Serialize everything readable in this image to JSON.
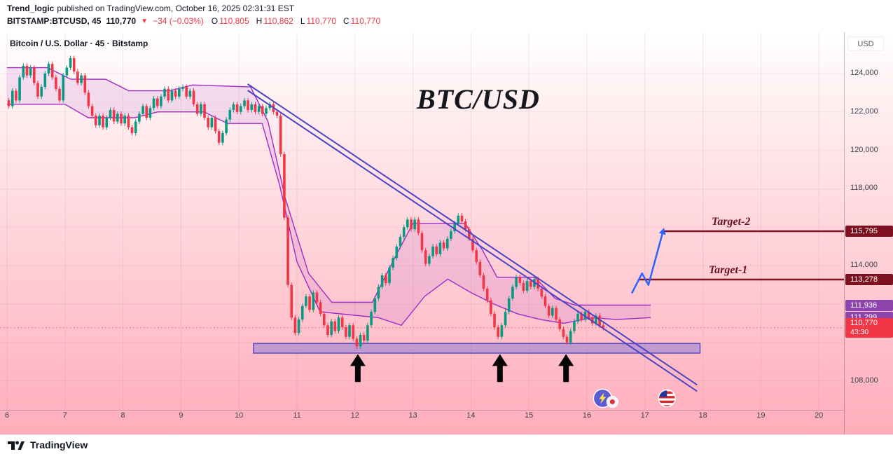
{
  "header": {
    "byline_author": "Trend_logic",
    "byline_rest": "published on TradingView.com, October 16, 2025 02:31:31 EST",
    "symbol": "BITSTAMP:BTCUSD, 45",
    "last_price": "110,770",
    "direction_icon": "▼",
    "change": "−34 (−0.03%)",
    "ohlc": {
      "o_label": "O",
      "o": "110,805",
      "h_label": "H",
      "h": "110,862",
      "l_label": "L",
      "l": "110,770",
      "c_label": "C",
      "c": "110,770"
    }
  },
  "chart": {
    "legend": "Bitcoin / U.S. Dollar · 45 · Bitstamp",
    "watermark": "BTC/USD",
    "currency_button": "USD",
    "y_axis_ticks": [
      {
        "label": "124,000",
        "price": 124000
      },
      {
        "label": "122,000",
        "price": 122000
      },
      {
        "label": "120,000",
        "price": 120000
      },
      {
        "label": "118,000",
        "price": 118000
      },
      {
        "label": "114,000",
        "price": 114000
      },
      {
        "label": "108,000",
        "price": 108000
      }
    ],
    "x_axis_ticks": [
      "6",
      "7",
      "8",
      "9",
      "10",
      "11",
      "12",
      "13",
      "14",
      "15",
      "16",
      "17",
      "18",
      "19",
      "20"
    ],
    "price_badges": [
      {
        "text": "115,795",
        "price": 115795,
        "color": "#7e1120"
      },
      {
        "text": "113,278",
        "price": 113278,
        "color": "#7e1120"
      },
      {
        "text": "111,936",
        "price": 111936,
        "color": "#8e44ad"
      },
      {
        "text": "111,299",
        "price": 111299,
        "color": "#8e44ad"
      },
      {
        "text": "110,770",
        "sub": "43:30",
        "price": 110770,
        "color": "#f23645"
      }
    ]
  },
  "chart_data": {
    "type": "candlestick",
    "title": "BTC/USD",
    "exchange": "Bitstamp",
    "interval": "45",
    "ylim": [
      106500,
      126000
    ],
    "x_days_start": 6,
    "x_days_end": 20,
    "candles_per_day": 16,
    "first_open": 122600,
    "wick": 130,
    "up_color": "#089981",
    "down_color": "#f23645",
    "closes": [
      122300,
      123100,
      122600,
      123800,
      124400,
      123900,
      124300,
      123500,
      122800,
      123300,
      124000,
      124500,
      123800,
      123200,
      122600,
      123900,
      124300,
      124800,
      124100,
      123500,
      123900,
      123000,
      122300,
      121800,
      121300,
      121800,
      121200,
      121700,
      122100,
      121500,
      121900,
      121400,
      121800,
      121200,
      120900,
      121500,
      121900,
      122300,
      121700,
      122200,
      122700,
      122300,
      122800,
      123200,
      122600,
      123100,
      122800,
      123200,
      123300,
      122800,
      123100,
      122400,
      121900,
      122400,
      121700,
      121200,
      121700,
      121000,
      120400,
      120900,
      121600,
      122100,
      122400,
      122000,
      122300,
      122600,
      122100,
      122400,
      122000,
      122300,
      121900,
      122200,
      122400,
      122000,
      121800,
      119800,
      116500,
      113000,
      111300,
      110500,
      111200,
      111900,
      112400,
      111700,
      112600,
      112100,
      111500,
      110900,
      110400,
      111100,
      110600,
      111300,
      110800,
      110300,
      110900,
      110200,
      109800,
      110400,
      110100,
      110900,
      111600,
      112300,
      112900,
      113500,
      113100,
      113900,
      114400,
      115000,
      115500,
      116000,
      116400,
      115900,
      116400,
      115700,
      114800,
      114100,
      114500,
      115000,
      114600,
      115200,
      114900,
      115400,
      115800,
      116200,
      116600,
      116300,
      115900,
      115400,
      114800,
      114200,
      113500,
      112800,
      112200,
      111500,
      110800,
      110300,
      110900,
      111600,
      112300,
      112900,
      113400,
      113100,
      112700,
      113200,
      112900,
      113300,
      112800,
      112400,
      111900,
      111400,
      111800,
      111200,
      110700,
      110300,
      110000,
      110600,
      111100,
      111500,
      111200,
      111600,
      111300,
      111000,
      111400,
      110900,
      110770
    ],
    "support_zone": {
      "day_start": 10.25,
      "day_end": 17.95,
      "price_top": 109950,
      "price_bottom": 109450,
      "fill": "rgba(123,110,214,0.45)",
      "border": "#5b4bc4"
    },
    "trendline_color": "#4a43c6",
    "trendlines": [
      {
        "from_day": 10.15,
        "from_price": 123450,
        "to_day": 17.9,
        "to_price": 107800
      },
      {
        "from_day": 10.15,
        "from_price": 123120,
        "to_day": 17.9,
        "to_price": 107470
      }
    ],
    "cloud": {
      "color": "#a02bc4",
      "fill": "rgba(160,60,200,0.13)",
      "span_a": [
        [
          6,
          124300
        ],
        [
          6.7,
          124300
        ],
        [
          7.1,
          123700
        ],
        [
          7.7,
          123700
        ],
        [
          8.1,
          123100
        ],
        [
          8.8,
          123100
        ],
        [
          9.2,
          123400
        ],
        [
          10.2,
          123300
        ],
        [
          10.5,
          121500
        ],
        [
          10.8,
          117500
        ],
        [
          11.2,
          113600
        ],
        [
          11.6,
          112100
        ],
        [
          12.3,
          112100
        ],
        [
          12.7,
          114500
        ],
        [
          13.0,
          116200
        ],
        [
          13.9,
          116200
        ],
        [
          14.2,
          114800
        ],
        [
          14.45,
          113400
        ],
        [
          15.1,
          113400
        ],
        [
          15.45,
          112300
        ],
        [
          15.8,
          111950
        ],
        [
          17.1,
          111950
        ]
      ],
      "span_b": [
        [
          6,
          122400
        ],
        [
          7.0,
          122400
        ],
        [
          7.4,
          121700
        ],
        [
          8.2,
          121700
        ],
        [
          8.6,
          122000
        ],
        [
          9.4,
          122000
        ],
        [
          9.8,
          121400
        ],
        [
          10.4,
          121400
        ],
        [
          10.7,
          118200
        ],
        [
          11.0,
          114200
        ],
        [
          11.4,
          111600
        ],
        [
          12.4,
          111300
        ],
        [
          12.8,
          110900
        ],
        [
          13.2,
          112400
        ],
        [
          13.6,
          113300
        ],
        [
          14.0,
          112600
        ],
        [
          14.4,
          112000
        ],
        [
          14.8,
          111500
        ],
        [
          15.2,
          111200
        ],
        [
          15.6,
          111000
        ],
        [
          16.1,
          111300
        ],
        [
          16.5,
          111200
        ],
        [
          17.1,
          111300
        ]
      ]
    },
    "target_color": "#7e1120",
    "targets": [
      {
        "label": "Target-2",
        "price": 115795,
        "line_from_day": 17.3,
        "text_day": 18.15
      },
      {
        "label": "Target-1",
        "price": 113278,
        "line_from_day": 16.9,
        "text_day": 18.1
      }
    ],
    "current_price": 110770,
    "black_arrows_days": [
      12.05,
      14.5,
      15.64
    ],
    "black_arrow_tip_price": 109400,
    "black_arrow_base_price": 107950,
    "blue_arrow": {
      "color": "#2962ff",
      "points": [
        [
          16.78,
          112600
        ],
        [
          16.95,
          113600
        ],
        [
          17.06,
          113000
        ],
        [
          17.3,
          115650
        ]
      ]
    },
    "stickers": [
      {
        "type": "lightning",
        "day": 16.27,
        "price": 107100
      },
      {
        "type": "us-flag",
        "day": 17.38,
        "price": 107100
      }
    ]
  },
  "footer": {
    "brand": "TradingView"
  }
}
